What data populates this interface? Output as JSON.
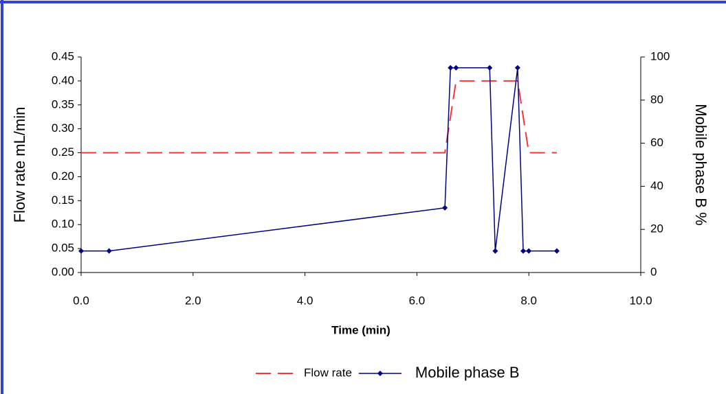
{
  "chart_data": {
    "type": "line",
    "xlabel": "Time (min)",
    "ylabel": "Flow rate mL/min",
    "y2label": "Mobile phase B %",
    "xlim": [
      0,
      10
    ],
    "xticks": [
      {
        "value": 0,
        "label": "0.0"
      },
      {
        "value": 2,
        "label": "2.0"
      },
      {
        "value": 4,
        "label": "4.0"
      },
      {
        "value": 6,
        "label": "6.0"
      },
      {
        "value": 8,
        "label": "8.0"
      },
      {
        "value": 10,
        "label": "10.0"
      }
    ],
    "ylim": [
      0,
      0.45
    ],
    "yticks": [
      {
        "value": 0,
        "label": "0.00"
      },
      {
        "value": 0.05,
        "label": "0.05"
      },
      {
        "value": 0.1,
        "label": "0.10"
      },
      {
        "value": 0.15,
        "label": "0.15"
      },
      {
        "value": 0.2,
        "label": "0.20"
      },
      {
        "value": 0.25,
        "label": "0.25"
      },
      {
        "value": 0.3,
        "label": "0.30"
      },
      {
        "value": 0.35,
        "label": "0.35"
      },
      {
        "value": 0.4,
        "label": "0.40"
      },
      {
        "value": 0.45,
        "label": "0.45"
      }
    ],
    "y2lim": [
      0,
      100
    ],
    "y2ticks": [
      0,
      20,
      40,
      60,
      80,
      100
    ],
    "series": [
      {
        "name": "Flow rate",
        "color": "#ff3333",
        "dashed": true,
        "x": [
          0,
          6.5,
          6.7,
          7.8,
          8.0,
          8.5
        ],
        "values": [
          0.25,
          0.25,
          0.4,
          0.4,
          0.25,
          0.25
        ]
      },
      {
        "name": "Mobile phase B",
        "color": "#000080",
        "axis": "y2",
        "markers": true,
        "x": [
          0,
          0.5,
          6.5,
          6.6,
          6.7,
          7.3,
          7.4,
          7.8,
          7.9,
          8.0,
          8.5
        ],
        "values": [
          10,
          10,
          30,
          95,
          95,
          95,
          10,
          95,
          10,
          10,
          10
        ]
      }
    ]
  }
}
